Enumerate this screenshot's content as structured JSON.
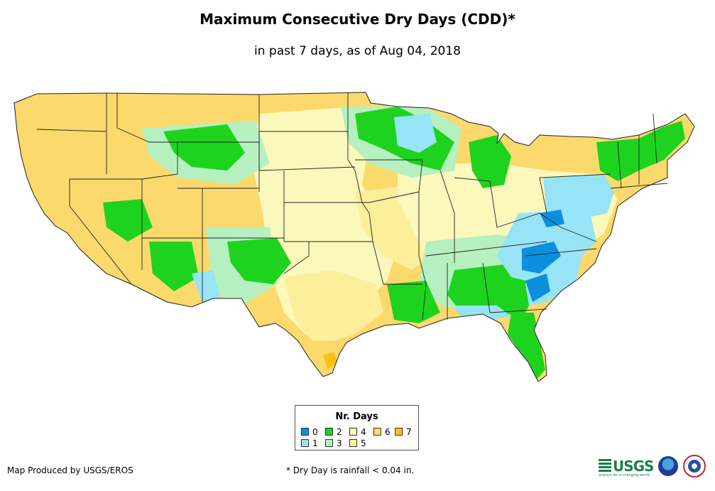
{
  "title": "Maximum Consecutive Dry Days (CDD)*",
  "subtitle": "in past 7 days, as of Aug 04, 2018",
  "legend": {
    "title": "Nr. Days",
    "items": [
      {
        "label": "0",
        "color": "#0c8fde"
      },
      {
        "label": "1",
        "color": "#96e4f5"
      },
      {
        "label": "2",
        "color": "#1ed31e"
      },
      {
        "label": "3",
        "color": "#b6f0c0"
      },
      {
        "label": "4",
        "color": "#fbf8bb"
      },
      {
        "label": "5",
        "color": "#fdee9c"
      },
      {
        "label": "6",
        "color": "#fcd96c"
      },
      {
        "label": "7",
        "color": "#f8c113"
      }
    ]
  },
  "credit": "Map Produced by USGS/EROS",
  "footnote": "* Dry Day is rainfall < 0.04 in.",
  "logos": {
    "usgs": "USGS",
    "usgs_tagline": "science for a changing world",
    "noaa_icon": "noaa-icon",
    "nws_icon": "nws-icon"
  }
}
